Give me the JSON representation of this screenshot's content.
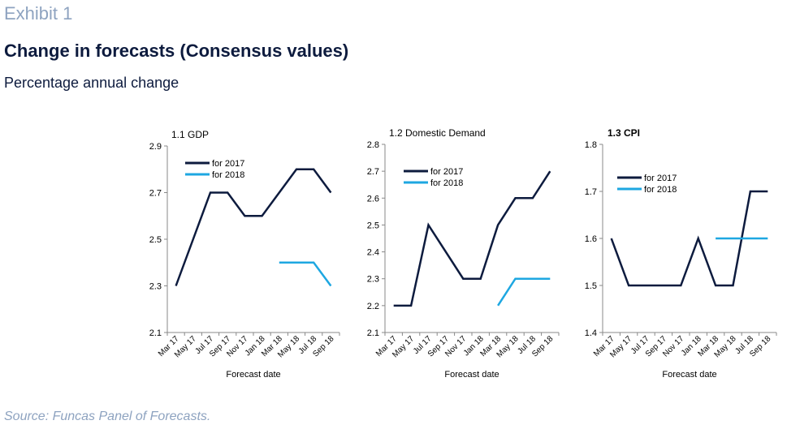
{
  "header": {
    "exhibit": "Exhibit 1",
    "title": "Change in forecasts (Consensus values)",
    "subtitle": "Percentage annual change"
  },
  "footer": {
    "source": "Source: Funcas Panel of Forecasts."
  },
  "colors": {
    "series_2017": "#0d1b3e",
    "series_2018": "#1ea7e1"
  },
  "chart_data": [
    {
      "type": "line",
      "title": "1.1 GDP",
      "xlabel": "Forecast date",
      "ylabel": "",
      "ylim": [
        2.1,
        2.9
      ],
      "yticks": [
        "2.1",
        "2.3",
        "2.5",
        "2.7",
        "2.9"
      ],
      "categories": [
        "Mar 17",
        "May 17",
        "Jul 17",
        "Sep 17",
        "Nov 17",
        "Jan 18",
        "Mar 18",
        "May 18",
        "Jul 18",
        "Sep 18"
      ],
      "legend_position": "top-left",
      "series": [
        {
          "name": "for 2017",
          "values": [
            2.3,
            2.5,
            2.7,
            2.7,
            2.6,
            2.6,
            2.7,
            2.8,
            2.8,
            2.7
          ]
        },
        {
          "name": "for 2018",
          "values": [
            null,
            null,
            null,
            null,
            null,
            null,
            2.4,
            2.4,
            2.4,
            2.3
          ]
        }
      ]
    },
    {
      "type": "line",
      "title": "1.2 Domestic Demand",
      "xlabel": "Forecast date",
      "ylabel": "",
      "ylim": [
        2.1,
        2.8
      ],
      "yticks": [
        "2.1",
        "2.2",
        "2.3",
        "2.4",
        "2.5",
        "2.6",
        "2.7",
        "2.8"
      ],
      "categories": [
        "Mar 17",
        "May 17",
        "Jul 17",
        "Sep 17",
        "Nov 17",
        "Jan 18",
        "Mar 18",
        "May 18",
        "Jul 18",
        "Sep 18"
      ],
      "legend_position": "top-left",
      "series": [
        {
          "name": "for 2017",
          "values": [
            2.2,
            2.2,
            2.5,
            2.4,
            2.3,
            2.3,
            2.5,
            2.6,
            2.6,
            2.7
          ]
        },
        {
          "name": "for 2018",
          "values": [
            null,
            null,
            null,
            null,
            null,
            null,
            2.2,
            2.3,
            2.3,
            2.3
          ]
        }
      ]
    },
    {
      "type": "line",
      "title": "1.3 CPI",
      "xlabel": "Forecast date",
      "ylabel": "",
      "ylim": [
        1.4,
        1.8
      ],
      "yticks": [
        "1.4",
        "1.5",
        "1.6",
        "1.7",
        "1.8"
      ],
      "categories": [
        "Mar 17",
        "May 17",
        "Jul 17",
        "Sep 17",
        "Nov 17",
        "Jan 18",
        "Mar 18",
        "May 18",
        "Jul 18",
        "Sep 18"
      ],
      "legend_position": "top-left",
      "series": [
        {
          "name": "for 2017",
          "values": [
            1.6,
            1.5,
            1.5,
            1.5,
            1.5,
            1.6,
            1.5,
            1.5,
            1.7,
            1.7
          ]
        },
        {
          "name": "for 2018",
          "values": [
            null,
            null,
            null,
            null,
            null,
            null,
            1.6,
            1.6,
            1.6,
            1.6
          ]
        }
      ]
    }
  ]
}
